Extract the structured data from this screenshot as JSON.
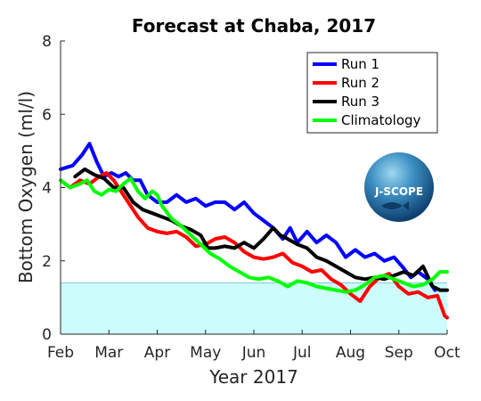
{
  "chart_data": {
    "type": "line",
    "title": "Forecast at Chaba, 2017",
    "xlabel": "Year 2017",
    "ylabel": "Bottom Oxygen (ml/l)",
    "xlim": [
      0,
      8
    ],
    "ylim": [
      0,
      8
    ],
    "x_ticks": [
      {
        "v": 0,
        "label": "Feb"
      },
      {
        "v": 1,
        "label": "Mar"
      },
      {
        "v": 2,
        "label": "Apr"
      },
      {
        "v": 3,
        "label": "May"
      },
      {
        "v": 4,
        "label": "Jun"
      },
      {
        "v": 5,
        "label": "Jul"
      },
      {
        "v": 6,
        "label": "Aug"
      },
      {
        "v": 7,
        "label": "Sep"
      },
      {
        "v": 8,
        "label": "Oct"
      }
    ],
    "y_ticks": [
      0,
      2,
      4,
      6,
      8
    ],
    "hypoxia_band": {
      "from": 0,
      "to": 1.4,
      "color": "#ccfcfc",
      "edge": "#7ec8d4"
    },
    "legend_position": "top-right",
    "logo_text": "J-SCOPE",
    "series": [
      {
        "name": "Run 1",
        "color": "#0000ff",
        "points": [
          [
            0,
            4.5
          ],
          [
            0.25,
            4.6
          ],
          [
            0.45,
            4.9
          ],
          [
            0.6,
            5.2
          ],
          [
            0.75,
            4.7
          ],
          [
            0.9,
            4.3
          ],
          [
            1.05,
            4.4
          ],
          [
            1.2,
            4.3
          ],
          [
            1.35,
            4.4
          ],
          [
            1.5,
            4.2
          ],
          [
            1.65,
            4.2
          ],
          [
            1.8,
            3.8
          ],
          [
            2.0,
            3.6
          ],
          [
            2.2,
            3.6
          ],
          [
            2.4,
            3.8
          ],
          [
            2.6,
            3.6
          ],
          [
            2.8,
            3.7
          ],
          [
            3.0,
            3.5
          ],
          [
            3.2,
            3.6
          ],
          [
            3.4,
            3.6
          ],
          [
            3.6,
            3.4
          ],
          [
            3.8,
            3.6
          ],
          [
            4.0,
            3.3
          ],
          [
            4.2,
            3.1
          ],
          [
            4.4,
            2.9
          ],
          [
            4.6,
            2.6
          ],
          [
            4.75,
            2.9
          ],
          [
            4.9,
            2.5
          ],
          [
            5.1,
            2.8
          ],
          [
            5.3,
            2.5
          ],
          [
            5.5,
            2.7
          ],
          [
            5.7,
            2.5
          ],
          [
            5.9,
            2.1
          ],
          [
            6.1,
            2.3
          ],
          [
            6.3,
            2.1
          ],
          [
            6.5,
            2.2
          ],
          [
            6.7,
            2.0
          ],
          [
            6.9,
            2.1
          ],
          [
            7.1,
            1.8
          ],
          [
            7.25,
            1.55
          ],
          [
            7.4,
            1.7
          ],
          [
            7.6,
            1.5
          ],
          [
            7.75,
            1.2
          ]
        ]
      },
      {
        "name": "Run 2",
        "color": "#ff0000",
        "points": [
          [
            0,
            4.2
          ],
          [
            0.2,
            4.0
          ],
          [
            0.4,
            4.2
          ],
          [
            0.6,
            4.1
          ],
          [
            0.8,
            4.3
          ],
          [
            0.95,
            4.4
          ],
          [
            1.1,
            4.2
          ],
          [
            1.25,
            3.9
          ],
          [
            1.4,
            3.6
          ],
          [
            1.6,
            3.2
          ],
          [
            1.8,
            2.9
          ],
          [
            2.0,
            2.8
          ],
          [
            2.2,
            2.75
          ],
          [
            2.4,
            2.8
          ],
          [
            2.6,
            2.65
          ],
          [
            2.8,
            2.4
          ],
          [
            3.0,
            2.45
          ],
          [
            3.2,
            2.6
          ],
          [
            3.4,
            2.65
          ],
          [
            3.6,
            2.5
          ],
          [
            3.8,
            2.25
          ],
          [
            4.0,
            2.1
          ],
          [
            4.2,
            2.05
          ],
          [
            4.4,
            2.1
          ],
          [
            4.6,
            2.2
          ],
          [
            4.8,
            1.95
          ],
          [
            5.0,
            1.85
          ],
          [
            5.2,
            1.7
          ],
          [
            5.4,
            1.75
          ],
          [
            5.6,
            1.5
          ],
          [
            5.8,
            1.35
          ],
          [
            6.0,
            1.1
          ],
          [
            6.2,
            0.9
          ],
          [
            6.4,
            1.3
          ],
          [
            6.6,
            1.55
          ],
          [
            6.8,
            1.65
          ],
          [
            7.0,
            1.3
          ],
          [
            7.2,
            1.1
          ],
          [
            7.4,
            1.15
          ],
          [
            7.6,
            1.0
          ],
          [
            7.8,
            1.05
          ],
          [
            7.95,
            0.5
          ],
          [
            8.0,
            0.45
          ]
        ]
      },
      {
        "name": "Run 3",
        "color": "#000000",
        "points": [
          [
            0.3,
            4.3
          ],
          [
            0.5,
            4.5
          ],
          [
            0.7,
            4.35
          ],
          [
            0.9,
            4.25
          ],
          [
            1.1,
            4.0
          ],
          [
            1.3,
            4.0
          ],
          [
            1.5,
            3.6
          ],
          [
            1.7,
            3.4
          ],
          [
            1.9,
            3.3
          ],
          [
            2.1,
            3.2
          ],
          [
            2.3,
            3.1
          ],
          [
            2.5,
            2.95
          ],
          [
            2.7,
            2.85
          ],
          [
            2.9,
            2.7
          ],
          [
            3.05,
            2.35
          ],
          [
            3.2,
            2.35
          ],
          [
            3.4,
            2.4
          ],
          [
            3.6,
            2.35
          ],
          [
            3.8,
            2.5
          ],
          [
            4.0,
            2.35
          ],
          [
            4.2,
            2.6
          ],
          [
            4.4,
            2.9
          ],
          [
            4.55,
            2.7
          ],
          [
            4.7,
            2.6
          ],
          [
            4.9,
            2.45
          ],
          [
            5.1,
            2.35
          ],
          [
            5.3,
            2.1
          ],
          [
            5.5,
            2.0
          ],
          [
            5.7,
            1.85
          ],
          [
            5.9,
            1.7
          ],
          [
            6.1,
            1.55
          ],
          [
            6.3,
            1.5
          ],
          [
            6.5,
            1.55
          ],
          [
            6.7,
            1.5
          ],
          [
            6.9,
            1.6
          ],
          [
            7.1,
            1.7
          ],
          [
            7.3,
            1.6
          ],
          [
            7.5,
            1.85
          ],
          [
            7.7,
            1.3
          ],
          [
            7.85,
            1.2
          ],
          [
            8.0,
            1.2
          ]
        ]
      },
      {
        "name": "Climatology",
        "color": "#00ff00",
        "points": [
          [
            0,
            4.2
          ],
          [
            0.2,
            4.0
          ],
          [
            0.4,
            4.1
          ],
          [
            0.55,
            4.2
          ],
          [
            0.7,
            3.9
          ],
          [
            0.85,
            3.8
          ],
          [
            1.0,
            3.95
          ],
          [
            1.15,
            3.9
          ],
          [
            1.3,
            4.1
          ],
          [
            1.45,
            4.25
          ],
          [
            1.6,
            3.9
          ],
          [
            1.75,
            3.7
          ],
          [
            1.9,
            3.9
          ],
          [
            2.0,
            3.8
          ],
          [
            2.1,
            3.5
          ],
          [
            2.3,
            3.15
          ],
          [
            2.5,
            2.95
          ],
          [
            2.7,
            2.7
          ],
          [
            2.9,
            2.45
          ],
          [
            3.1,
            2.2
          ],
          [
            3.3,
            2.05
          ],
          [
            3.5,
            1.85
          ],
          [
            3.7,
            1.7
          ],
          [
            3.9,
            1.55
          ],
          [
            4.1,
            1.5
          ],
          [
            4.3,
            1.55
          ],
          [
            4.5,
            1.45
          ],
          [
            4.7,
            1.3
          ],
          [
            4.9,
            1.45
          ],
          [
            5.1,
            1.4
          ],
          [
            5.3,
            1.3
          ],
          [
            5.5,
            1.25
          ],
          [
            5.7,
            1.2
          ],
          [
            5.9,
            1.15
          ],
          [
            6.1,
            1.2
          ],
          [
            6.3,
            1.35
          ],
          [
            6.5,
            1.55
          ],
          [
            6.7,
            1.6
          ],
          [
            6.9,
            1.5
          ],
          [
            7.1,
            1.4
          ],
          [
            7.3,
            1.3
          ],
          [
            7.5,
            1.35
          ],
          [
            7.7,
            1.5
          ],
          [
            7.85,
            1.7
          ],
          [
            8.0,
            1.7
          ]
        ]
      }
    ]
  }
}
